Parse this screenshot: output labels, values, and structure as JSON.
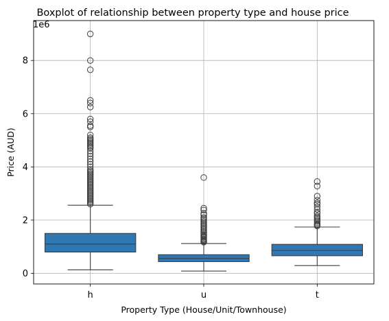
{
  "chart_data": {
    "type": "boxplot",
    "title": "Boxplot of relationship between property type and house price",
    "xlabel": "Property Type (House/Unit/Townhouse)",
    "ylabel": "Price (AUD)",
    "y_offset_label": "1e6",
    "y_scale": 1000000,
    "ylim": [
      -0.4,
      9.5
    ],
    "yticks": [
      0,
      2,
      4,
      6,
      8
    ],
    "grid": true,
    "color": "#2f78b4",
    "line_color": "#3d3d3d",
    "categories": [
      "h",
      "u",
      "t"
    ],
    "boxes": [
      {
        "category": "h",
        "whislo": 0.13,
        "q1": 0.8,
        "median": 1.1,
        "q3": 1.5,
        "whishi": 2.56,
        "fliers": [
          9.0,
          8.0,
          7.65,
          6.5,
          6.4,
          6.25,
          5.8,
          5.7,
          5.55,
          5.5,
          5.2,
          5.1,
          5.05,
          5.0,
          4.95,
          4.9,
          4.85,
          4.8,
          4.75,
          4.7,
          4.6,
          4.5,
          4.4,
          4.3,
          4.2,
          4.1,
          4.0,
          3.9,
          3.85,
          3.8,
          3.75,
          3.7,
          3.65,
          3.6,
          3.55,
          3.5,
          3.45,
          3.4,
          3.35,
          3.3,
          3.25,
          3.2,
          3.15,
          3.1,
          3.05,
          3.0,
          2.95,
          2.9,
          2.85,
          2.8,
          2.75,
          2.7,
          2.65,
          2.6
        ]
      },
      {
        "category": "u",
        "whislo": 0.085,
        "q1": 0.44,
        "median": 0.56,
        "q3": 0.7,
        "whishi": 1.12,
        "fliers": [
          3.6,
          2.45,
          2.38,
          2.25,
          2.2,
          2.1,
          2.05,
          2.0,
          1.95,
          1.9,
          1.85,
          1.8,
          1.75,
          1.7,
          1.65,
          1.6,
          1.55,
          1.5,
          1.45,
          1.42,
          1.38,
          1.35,
          1.3,
          1.27,
          1.24,
          1.2,
          1.17
        ]
      },
      {
        "category": "t",
        "whislo": 0.29,
        "q1": 0.66,
        "median": 0.86,
        "q3": 1.09,
        "whishi": 1.74,
        "fliers": [
          3.45,
          3.28,
          2.9,
          2.75,
          2.65,
          2.6,
          2.5,
          2.4,
          2.3,
          2.25,
          2.15,
          2.1,
          2.05,
          2.0,
          1.95,
          1.9,
          1.85,
          1.82,
          1.78
        ]
      }
    ]
  }
}
